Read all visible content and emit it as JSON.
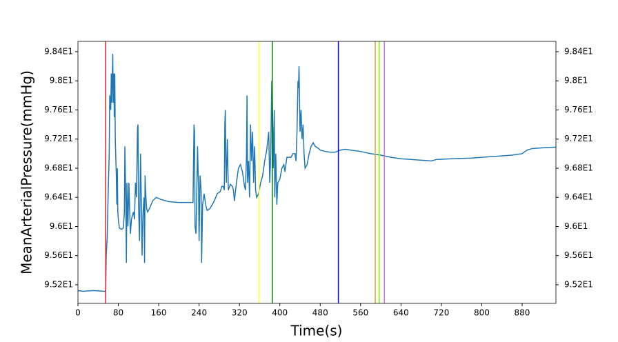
{
  "chart_data": {
    "type": "line",
    "xlabel": "Time(s)",
    "ylabel": "MeanArterialPressure(mmHg)",
    "color": "#1f77b4",
    "x": [
      0,
      10,
      30,
      53,
      55,
      56,
      58,
      60,
      62,
      63,
      65,
      66,
      67,
      68,
      69,
      70,
      71,
      72,
      73,
      74,
      76,
      77,
      78,
      79,
      80,
      82,
      86,
      90,
      92,
      93,
      95,
      96,
      97,
      99,
      101,
      103,
      104,
      106,
      110,
      112,
      114,
      116,
      118,
      119,
      120,
      122,
      124,
      126,
      127,
      129,
      131,
      132,
      133,
      134,
      136,
      138,
      142,
      148,
      155,
      165,
      180,
      200,
      228,
      229,
      230,
      231,
      232,
      234,
      236,
      237,
      239,
      240,
      242,
      244,
      245,
      247,
      250,
      253,
      256,
      262,
      270,
      276,
      282,
      285,
      288,
      290,
      291,
      292,
      293,
      294,
      296,
      298,
      302,
      306,
      308,
      310,
      314,
      318,
      322,
      326,
      330,
      332,
      334,
      335,
      336,
      338,
      340,
      342,
      344,
      346,
      348,
      350,
      352,
      354,
      358,
      362,
      366,
      370,
      374,
      378,
      380,
      382,
      384,
      385,
      387,
      389,
      390,
      392,
      394,
      396,
      400,
      404,
      408,
      410,
      414,
      418,
      422,
      426,
      430,
      432,
      434,
      436,
      437,
      438,
      440,
      442,
      444,
      446,
      448,
      450,
      454,
      458,
      462,
      466,
      470,
      475,
      480,
      490,
      500,
      510,
      520,
      530,
      540,
      560,
      580,
      600,
      620,
      640,
      660,
      680,
      700,
      710,
      740,
      780,
      820,
      860,
      880,
      890,
      900,
      920,
      947
    ],
    "values": [
      95.12,
      95.11,
      95.12,
      95.11,
      95.12,
      95.6,
      95.85,
      96.5,
      97.0,
      97.8,
      97.6,
      98.1,
      97.7,
      98.0,
      98.37,
      97.7,
      98.1,
      97.5,
      98.1,
      97.2,
      96.7,
      96.3,
      96.8,
      96.2,
      96.1,
      95.98,
      95.96,
      95.98,
      96.2,
      97.1,
      96.3,
      95.5,
      96.6,
      96.0,
      96.6,
      96.1,
      95.9,
      96.1,
      96.2,
      96.1,
      96.6,
      96.4,
      97.35,
      97.4,
      96.3,
      95.8,
      97.0,
      96.2,
      95.6,
      96.2,
      96.4,
      95.5,
      96.7,
      96.5,
      96.25,
      96.2,
      96.25,
      96.35,
      96.4,
      96.37,
      96.34,
      96.33,
      96.33,
      96.9,
      97.4,
      97.3,
      96.0,
      95.9,
      96.7,
      97.1,
      96.5,
      95.8,
      96.7,
      96.5,
      95.5,
      96.3,
      96.45,
      96.3,
      96.22,
      96.25,
      96.35,
      96.45,
      96.48,
      96.55,
      96.55,
      96.5,
      97.4,
      97.6,
      96.9,
      96.6,
      97.2,
      96.5,
      96.58,
      96.55,
      96.5,
      96.35,
      96.6,
      96.8,
      96.85,
      96.75,
      96.55,
      96.5,
      97.0,
      97.8,
      96.6,
      96.9,
      96.4,
      97.4,
      96.9,
      97.3,
      96.6,
      97.1,
      96.5,
      96.4,
      96.45,
      96.6,
      96.7,
      96.9,
      97.05,
      97.3,
      96.6,
      97.0,
      98.0,
      97.9,
      96.8,
      97.6,
      96.4,
      97.0,
      96.3,
      96.6,
      96.65,
      96.8,
      96.85,
      96.75,
      96.95,
      96.95,
      96.95,
      97.0,
      97.0,
      96.9,
      97.3,
      98.0,
      97.9,
      98.2,
      97.3,
      97.6,
      97.2,
      97.4,
      97.0,
      96.8,
      96.85,
      97.0,
      97.1,
      97.15,
      97.1,
      97.08,
      97.05,
      97.03,
      97.02,
      97.02,
      97.05,
      97.06,
      97.05,
      97.03,
      97.0,
      96.98,
      96.95,
      96.93,
      96.92,
      96.91,
      96.9,
      96.92,
      96.93,
      96.94,
      96.96,
      96.98,
      97.0,
      97.05,
      97.07,
      97.08,
      97.09
    ],
    "vlines": [
      {
        "x": 55,
        "color": "#d62728"
      },
      {
        "x": 359,
        "color": "#ffff33"
      },
      {
        "x": 385,
        "color": "#008000"
      },
      {
        "x": 516,
        "color": "#0000ff"
      },
      {
        "x": 589,
        "color": "#daa520"
      },
      {
        "x": 597,
        "color": "#7fff00"
      },
      {
        "x": 607,
        "color": "#da70d6"
      }
    ],
    "xlim": [
      0,
      947
    ],
    "xticks": [
      0,
      80,
      160,
      240,
      320,
      400,
      480,
      560,
      640,
      720,
      800,
      880
    ],
    "ylim": [
      94.944,
      98.542
    ],
    "yticks": [
      {
        "value": 95.2,
        "label": "9.52E1"
      },
      {
        "value": 95.6,
        "label": "9.56E1"
      },
      {
        "value": 96.0,
        "label": "9.6E1"
      },
      {
        "value": 96.4,
        "label": "9.64E1"
      },
      {
        "value": 96.8,
        "label": "9.68E1"
      },
      {
        "value": 97.2,
        "label": "9.72E1"
      },
      {
        "value": 97.6,
        "label": "9.76E1"
      },
      {
        "value": 98.0,
        "label": "9.8E1"
      },
      {
        "value": 98.4,
        "label": "9.84E1"
      }
    ],
    "y2lim": [
      94.944,
      98.542
    ],
    "y2ticks": [
      {
        "value": 95.2,
        "label": "9.52E1"
      },
      {
        "value": 95.6,
        "label": "9.56E1"
      },
      {
        "value": 96.0,
        "label": "9.6E1"
      },
      {
        "value": 96.4,
        "label": "9.64E1"
      },
      {
        "value": 96.8,
        "label": "9.68E1"
      },
      {
        "value": 97.2,
        "label": "9.72E1"
      },
      {
        "value": 97.6,
        "label": "9.76E1"
      },
      {
        "value": 98.0,
        "label": "9.8E1"
      },
      {
        "value": 98.4,
        "label": "9.84E1"
      }
    ]
  }
}
